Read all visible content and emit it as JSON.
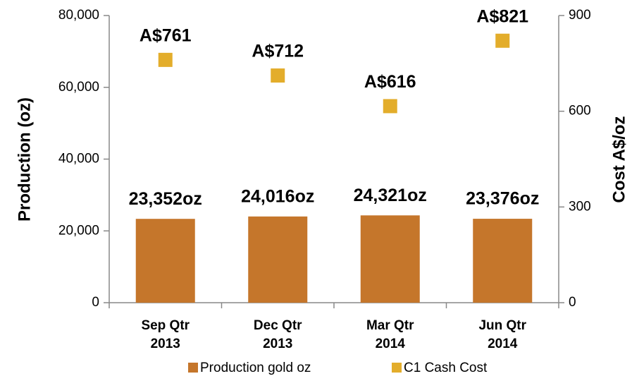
{
  "chart_data": {
    "type": "bar",
    "categories": [
      [
        "Sep Qtr",
        "2013"
      ],
      [
        "Dec Qtr",
        "2013"
      ],
      [
        "Mar Qtr",
        "2014"
      ],
      [
        "Jun Qtr",
        "2014"
      ]
    ],
    "ylabel": "Production (oz)",
    "y2label": "Cost A$/oz",
    "ylim": [
      0,
      80000
    ],
    "yticks": [
      0,
      {
        "value": 20000,
        "label": "20,000"
      },
      {
        "value": 40000,
        "label": "40,000"
      },
      {
        "value": 60000,
        "label": "60,000"
      },
      {
        "value": 80000,
        "label": "80,000"
      }
    ],
    "y2lim": [
      0,
      900
    ],
    "y2ticks": [
      0,
      300,
      600,
      900
    ],
    "legend": "bottom",
    "series": [
      {
        "name": "Production gold oz",
        "type": "bar",
        "color": "#c5762b",
        "values": [
          23352,
          24016,
          24321,
          23376
        ],
        "value_labels": [
          "23,352oz",
          "24,016oz",
          "24,321oz",
          "23,376oz"
        ]
      },
      {
        "name": "C1 Cash Cost",
        "type": "scatter",
        "axis": "y2",
        "color": "#e3ad2b",
        "values": [
          761,
          712,
          616,
          821
        ],
        "value_labels": [
          "A$761",
          "A$712",
          "A$616",
          "A$821"
        ]
      }
    ]
  }
}
